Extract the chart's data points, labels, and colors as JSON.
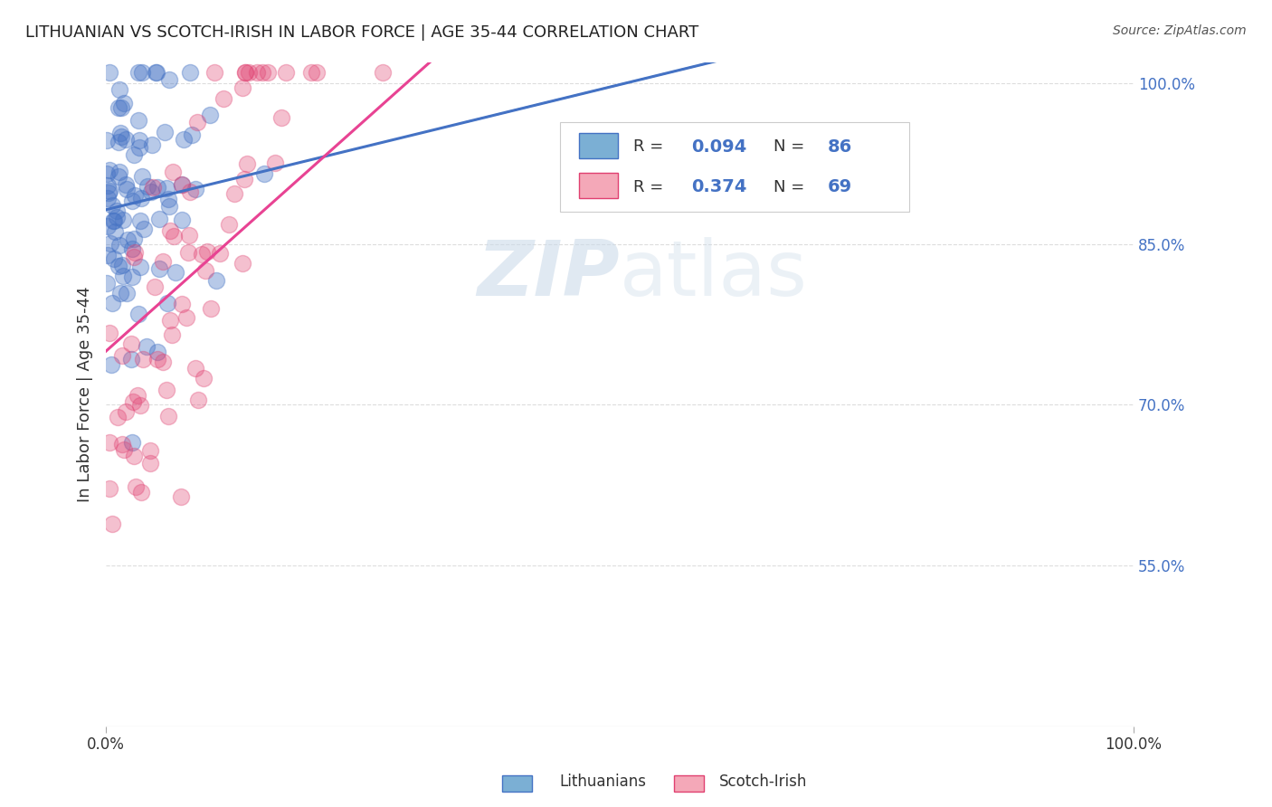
{
  "title": "LITHUANIAN VS SCOTCH-IRISH IN LABOR FORCE | AGE 35-44 CORRELATION CHART",
  "source": "Source: ZipAtlas.com",
  "ylabel": "In Labor Force | Age 35-44",
  "ytick_labels": [
    "55.0%",
    "70.0%",
    "85.0%",
    "100.0%"
  ],
  "ytick_values": [
    0.55,
    0.7,
    0.85,
    1.0
  ],
  "blue_line_color": "#4472c4",
  "pink_line_color": "#e84393",
  "blue_scatter_color": "#4472c4",
  "pink_scatter_color": "#e04070",
  "blue_legend_face": "#7bafd4",
  "pink_legend_face": "#f4a8b8",
  "watermark_color": "#c8d8e8",
  "background_color": "#ffffff",
  "grid_color": "#dddddd",
  "right_axis_color": "#4472c4",
  "R_blue": "0.094",
  "N_blue": "86",
  "R_pink": "0.374",
  "N_pink": "69"
}
